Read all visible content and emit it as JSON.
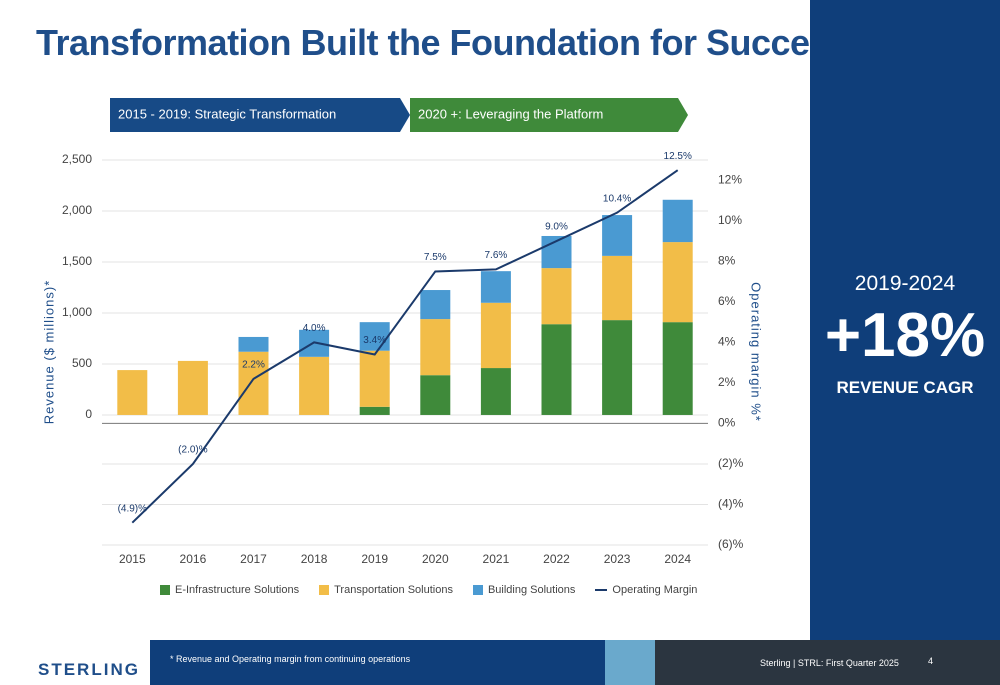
{
  "header": {
    "title": "Transformation Built the Foundation for Success"
  },
  "phases": [
    "2015 - 2019: Strategic Transformation",
    "2020 +: Leveraging the Platform"
  ],
  "chart_data": {
    "type": "bar",
    "stacked": true,
    "categories": [
      "2015",
      "2016",
      "2017",
      "2018",
      "2019",
      "2020",
      "2021",
      "2022",
      "2023",
      "2024"
    ],
    "y_label": "Revenue ($ millions)*",
    "y2_label": "Operating margin %*",
    "ylim": [
      -1275,
      2500
    ],
    "yticks": [
      0,
      500,
      {
        "value": 1000,
        "label": "1,000"
      },
      {
        "value": 1500,
        "label": "1,500"
      },
      {
        "value": 2000,
        "label": "2,000"
      },
      {
        "value": 2500,
        "label": "2,500"
      }
    ],
    "y2lim": [
      -6,
      13
    ],
    "y2ticks": [
      {
        "value": 12,
        "label": "12%"
      },
      {
        "value": 10,
        "label": "10%"
      },
      {
        "value": 8,
        "label": "8%"
      },
      {
        "value": 6,
        "label": "6%"
      },
      {
        "value": 4,
        "label": "4%"
      },
      {
        "value": 2,
        "label": "2%"
      },
      {
        "value": 0,
        "label": "0%"
      },
      {
        "value": -2,
        "label": "(2)%"
      },
      {
        "value": -4,
        "label": "(4)%"
      },
      {
        "value": -6,
        "label": "(6)%"
      }
    ],
    "grid": true,
    "legend": "bottom",
    "series": [
      {
        "name": "E-Infrastructure Solutions",
        "color": "#3f8a3a",
        "values": [
          null,
          null,
          null,
          null,
          80,
          390,
          460,
          890,
          930,
          910
        ]
      },
      {
        "name": "Transportation Solutions",
        "color": "#f2bd48",
        "values": [
          440,
          530,
          620,
          570,
          550,
          550,
          640,
          550,
          630,
          785
        ]
      },
      {
        "name": "Building Solutions",
        "color": "#4a9ad2",
        "values": [
          null,
          null,
          145,
          265,
          280,
          285,
          310,
          315,
          400,
          415
        ]
      },
      {
        "name": "Operating Margin",
        "color": "#1b3a6b",
        "type": "line",
        "axis": "y2",
        "values": [
          -4.9,
          -2.0,
          2.2,
          4.0,
          3.4,
          7.5,
          7.6,
          9.0,
          10.4,
          12.5
        ],
        "value_labels": [
          "(4.9)%",
          "(2.0)%",
          "2.2%",
          "4.0%",
          "3.4%",
          "7.5%",
          "7.6%",
          "9.0%",
          "10.4%",
          "12.5%"
        ]
      }
    ]
  },
  "side": {
    "period": "2019-2024",
    "value": "+18%",
    "caption": "REVENUE CAGR"
  },
  "footer": {
    "logo": "STERLING",
    "note": "* Revenue and Operating margin from continuing operations",
    "source": "Sterling | STRL:  First Quarter 2025",
    "page": "4"
  }
}
